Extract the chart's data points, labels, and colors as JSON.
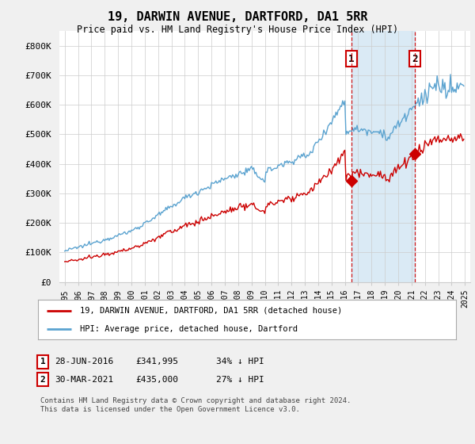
{
  "title": "19, DARWIN AVENUE, DARTFORD, DA1 5RR",
  "subtitle": "Price paid vs. HM Land Registry's House Price Index (HPI)",
  "ylabel_ticks": [
    "£0",
    "£100K",
    "£200K",
    "£300K",
    "£400K",
    "£500K",
    "£600K",
    "£700K",
    "£800K"
  ],
  "ytick_values": [
    0,
    100000,
    200000,
    300000,
    400000,
    500000,
    600000,
    700000,
    800000
  ],
  "ylim": [
    0,
    850000
  ],
  "sale1_price": 341995,
  "sale1_x": 2016.49,
  "sale2_price": 435000,
  "sale2_x": 2021.25,
  "sale1_date": "28-JUN-2016",
  "sale2_date": "30-MAR-2021",
  "sale1_pct": "34% ↓ HPI",
  "sale2_pct": "27% ↓ HPI",
  "hpi_color": "#5ba3d0",
  "hpi_fill": "#daeaf5",
  "price_color": "#cc0000",
  "vline_color": "#cc0000",
  "legend_label1": "19, DARWIN AVENUE, DARTFORD, DA1 5RR (detached house)",
  "legend_label2": "HPI: Average price, detached house, Dartford",
  "footnote": "Contains HM Land Registry data © Crown copyright and database right 2024.\nThis data is licensed under the Open Government Licence v3.0.",
  "background_color": "#f0f0f0",
  "plot_bg": "#ffffff",
  "grid_color": "#cccccc"
}
